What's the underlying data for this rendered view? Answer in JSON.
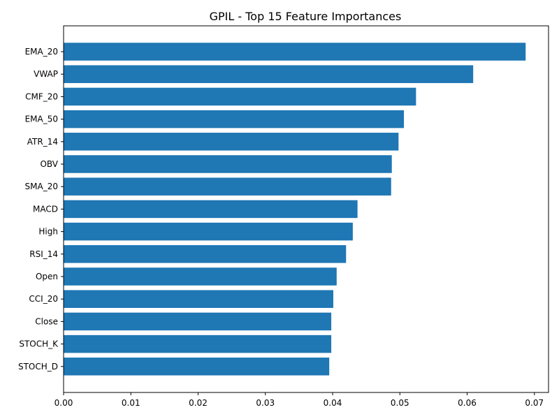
{
  "chart_data": {
    "type": "bar",
    "orientation": "horizontal",
    "title": "GPIL - Top 15 Feature Importances",
    "xlabel": "",
    "ylabel": "",
    "categories": [
      "EMA_20",
      "VWAP",
      "CMF_20",
      "EMA_50",
      "ATR_14",
      "OBV",
      "SMA_20",
      "MACD",
      "High",
      "RSI_14",
      "Open",
      "CCI_20",
      "Close",
      "STOCH_K",
      "STOCH_D"
    ],
    "values": [
      0.0687,
      0.0609,
      0.0524,
      0.0506,
      0.0498,
      0.0488,
      0.0487,
      0.0437,
      0.043,
      0.042,
      0.0406,
      0.0401,
      0.0398,
      0.0398,
      0.0395
    ],
    "xlim": [
      0,
      0.0721
    ],
    "xticks": [
      0.0,
      0.01,
      0.02,
      0.03,
      0.04,
      0.05,
      0.06,
      0.07
    ],
    "xtick_labels": [
      "0.00",
      "0.01",
      "0.02",
      "0.03",
      "0.04",
      "0.05",
      "0.06",
      "0.07"
    ],
    "grid": false,
    "legend": "none",
    "bar_color": "#1f77b4"
  }
}
